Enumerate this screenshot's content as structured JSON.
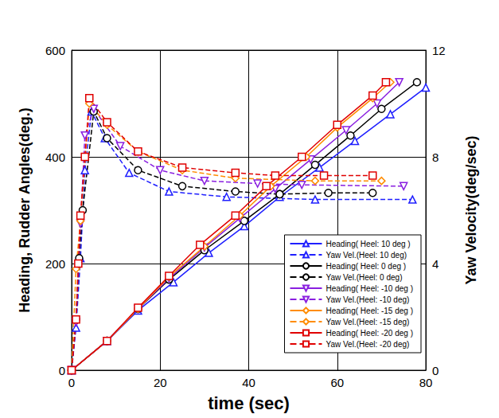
{
  "chart_data": {
    "type": "line",
    "x_label": "time (sec)",
    "y_label": "Heading, Rudder Angles(deg.)",
    "y2_label": "Yaw Velocity(deg/sec)",
    "xlim": [
      0,
      80
    ],
    "xticks": [
      0,
      20,
      40,
      60,
      80
    ],
    "ylim": [
      0,
      600
    ],
    "yticks": [
      0,
      200,
      400,
      600
    ],
    "y2lim": [
      0,
      12
    ],
    "y2ticks": [
      0,
      4,
      8,
      12
    ],
    "grid": true,
    "legend": "lower right",
    "series": [
      {
        "name": "Heading( Heel: 10 deg )",
        "color": "#1f1fff",
        "marker": "triangle",
        "line_style": "solid",
        "x": [
          0,
          8,
          15,
          23,
          31,
          39,
          47,
          56,
          64,
          72,
          80
        ],
        "values": [
          0,
          55,
          112,
          165,
          220,
          270,
          325,
          380,
          430,
          480,
          530
        ]
      },
      {
        "name": "Yaw Vel.(Heel: 10 deg)",
        "color": "#1f1fff",
        "marker": "triangle",
        "line_style": "dashed",
        "axis": "y2",
        "x": [
          0,
          1,
          2,
          3,
          4.5,
          7.5,
          13,
          22,
          35,
          55,
          77
        ],
        "values": [
          0,
          1.6,
          4.2,
          7.5,
          9.7,
          8.7,
          7.4,
          6.7,
          6.5,
          6.4,
          6.4
        ]
      },
      {
        "name": "Heading( Heel: 0 deg )",
        "color": "#000000",
        "marker": "circle",
        "line_style": "solid",
        "x": [
          0,
          8,
          15,
          22,
          30,
          39,
          47,
          55,
          63,
          70,
          78
        ],
        "values": [
          0,
          55,
          115,
          170,
          225,
          280,
          330,
          385,
          440,
          490,
          540
        ]
      },
      {
        "name": "Yaw Vel.(Heel: 0 deg)",
        "color": "#000000",
        "marker": "circle",
        "line_style": "dashed",
        "axis": "y2",
        "x": [
          0,
          1,
          1.7,
          2.5,
          5,
          8,
          15,
          25,
          37,
          47,
          58,
          68
        ],
        "values": [
          0,
          1.9,
          4.2,
          6.0,
          9.7,
          8.7,
          7.5,
          6.9,
          6.7,
          6.6,
          6.65,
          6.65
        ]
      },
      {
        "name": "Heading( Heel: -10 deg )",
        "color": "#8a1fe0",
        "marker": "triangle_down",
        "line_style": "solid",
        "x": [
          0,
          8,
          15,
          22,
          30,
          38,
          46,
          54,
          62,
          69,
          74
        ],
        "values": [
          0,
          55,
          115,
          172,
          230,
          285,
          340,
          395,
          450,
          500,
          540
        ]
      },
      {
        "name": "Yaw Vel.(Heel: -10 deg)",
        "color": "#8a1fe0",
        "marker": "triangle_down",
        "line_style": "dashed",
        "axis": "y2",
        "x": [
          0,
          1,
          2,
          3,
          5,
          11,
          20,
          30,
          42,
          52,
          75
        ],
        "values": [
          0,
          1.8,
          5.5,
          8.8,
          9.8,
          8.4,
          7.5,
          7.1,
          7.0,
          6.95,
          6.9
        ]
      },
      {
        "name": "Heading( Heel: -15 deg )",
        "color": "#ff8c00",
        "marker": "diamond",
        "line_style": "solid",
        "x": [
          0,
          8,
          15,
          22,
          30,
          38,
          45,
          53,
          60,
          68,
          72
        ],
        "values": [
          0,
          55,
          115,
          175,
          232,
          290,
          345,
          400,
          455,
          510,
          540
        ]
      },
      {
        "name": "Yaw Vel.(Heel: -15 deg)",
        "color": "#ff8c00",
        "marker": "diamond",
        "line_style": "dashed",
        "axis": "y2",
        "x": [
          0,
          1,
          2,
          4,
          8,
          15,
          25,
          37,
          55,
          70
        ],
        "values": [
          0,
          3.8,
          5.6,
          10.0,
          9.2,
          8.2,
          7.5,
          7.2,
          7.1,
          7.1
        ]
      },
      {
        "name": "Heading( Heel: -20 deg )",
        "color": "#e00000",
        "marker": "square",
        "line_style": "solid",
        "x": [
          0,
          8,
          15,
          22,
          29,
          37,
          44,
          52,
          60,
          68,
          71
        ],
        "values": [
          0,
          55,
          117,
          177,
          235,
          290,
          345,
          400,
          460,
          515,
          540
        ]
      },
      {
        "name": "Yaw Vel.(Heel: -20 deg)",
        "color": "#e00000",
        "marker": "square",
        "line_style": "dashed",
        "axis": "y2",
        "x": [
          0,
          1,
          1.5,
          2,
          3,
          4,
          8,
          15,
          25,
          37,
          46,
          57,
          68
        ],
        "values": [
          0,
          1.9,
          4.0,
          5.8,
          8.0,
          10.2,
          9.3,
          8.2,
          7.6,
          7.4,
          7.3,
          7.3,
          7.3
        ]
      }
    ]
  }
}
